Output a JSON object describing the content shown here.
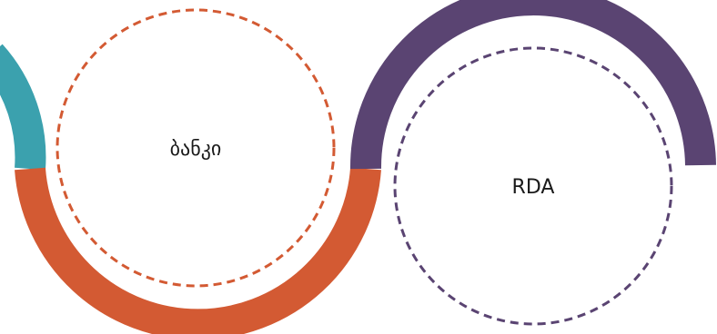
{
  "nodes": [
    {
      "label": "ბანკი",
      "ring_color": "#D35A33",
      "dash_color": "#D35A33"
    },
    {
      "label": "RDA",
      "ring_color": "#5A4472",
      "dash_color": "#5A4472"
    }
  ],
  "arcs": {
    "left_partial_color": "#3BA1AE",
    "bottom_color": "#D35A33",
    "top_right_color": "#5A4472"
  }
}
